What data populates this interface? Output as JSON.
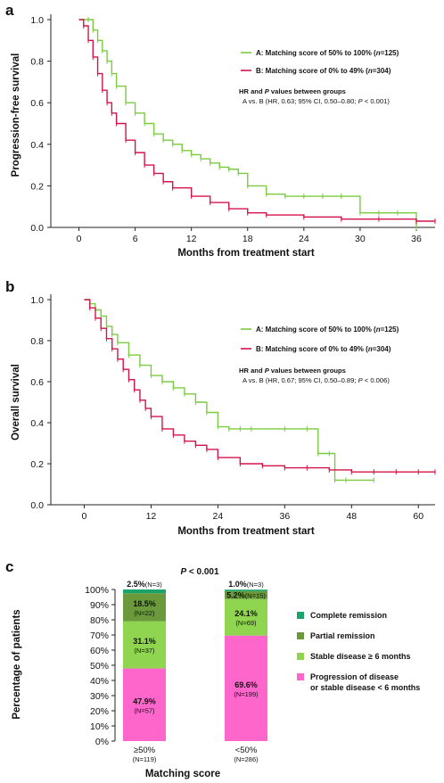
{
  "colors": {
    "green": "#7acc3f",
    "red": "#d3144a",
    "complete": "#1aa36b",
    "partial": "#6a9a3c",
    "stable": "#8fd54f",
    "progression": "#ff66cc"
  },
  "chart_data": [
    {
      "panel": "a",
      "type": "line",
      "ylabel": "Progression-free survival",
      "xlabel": "Months from treatment start",
      "xlim": [
        -3,
        38
      ],
      "ylim": [
        0,
        1.0
      ],
      "xticks": [
        0,
        6,
        12,
        18,
        24,
        30,
        36
      ],
      "yticks": [
        "0.0",
        "0.2",
        "0.4",
        "0.6",
        "0.8",
        "1.0"
      ],
      "legend": [
        {
          "letter": "A",
          "text": ": Matching score of 50% to 100% (",
          "n": "n",
          "ntext": "=125)"
        },
        {
          "letter": "B",
          "text": ": Matching score of 0% to 49% (",
          "n": "n",
          "ntext": "=304)"
        }
      ],
      "annotation": {
        "line1_pre": "HR and ",
        "line1_it": "P",
        "line1_post": " values between groups",
        "line2": "A vs. B (HR, 0.63; 95% CI, 0.50–0.80; ",
        "line2_it": "P",
        "line2_post": " < 0.001)"
      },
      "series": [
        {
          "name": "A: Matching score of 50% to 100% (n=125)",
          "x": [
            0,
            1,
            1.5,
            2,
            2.5,
            3,
            3.5,
            4,
            5,
            6,
            7,
            8,
            9,
            10,
            11,
            12,
            13,
            14,
            15,
            16,
            17,
            18,
            20,
            22,
            24,
            26,
            28,
            30,
            32,
            34,
            36
          ],
          "y": [
            1.0,
            1.0,
            0.95,
            0.9,
            0.85,
            0.8,
            0.74,
            0.68,
            0.6,
            0.55,
            0.5,
            0.45,
            0.42,
            0.4,
            0.37,
            0.35,
            0.33,
            0.31,
            0.29,
            0.28,
            0.26,
            0.2,
            0.16,
            0.15,
            0.15,
            0.15,
            0.15,
            0.07,
            0.07,
            0.07,
            0.0
          ]
        },
        {
          "name": "B: Matching score of 0% to 49% (n=304)",
          "x": [
            0,
            0.5,
            1,
            1.5,
            2,
            2.5,
            3,
            3.5,
            4,
            5,
            6,
            7,
            8,
            9,
            10,
            12,
            14,
            16,
            18,
            20,
            24,
            28,
            32,
            36,
            38
          ],
          "y": [
            1.0,
            0.97,
            0.9,
            0.82,
            0.74,
            0.66,
            0.6,
            0.55,
            0.5,
            0.42,
            0.36,
            0.3,
            0.26,
            0.22,
            0.19,
            0.15,
            0.12,
            0.09,
            0.07,
            0.06,
            0.05,
            0.04,
            0.04,
            0.03,
            0.03
          ]
        }
      ]
    },
    {
      "panel": "b",
      "type": "line",
      "ylabel": "Overall survival",
      "xlabel": "Months from treatment start",
      "xlim": [
        -6,
        63
      ],
      "ylim": [
        0,
        1.0
      ],
      "xticks": [
        0,
        12,
        24,
        36,
        48,
        60
      ],
      "yticks": [
        "0.0",
        "0.2",
        "0.4",
        "0.6",
        "0.8",
        "1.0"
      ],
      "legend": [
        {
          "letter": "A",
          "text": ": Matching score of 50% to 100% (",
          "n": "n",
          "ntext": "=125)"
        },
        {
          "letter": "B",
          "text": ": Matching score of 0% to 49% (",
          "n": "n",
          "ntext": "=304)"
        }
      ],
      "annotation": {
        "line1_pre": "HR and ",
        "line1_it": "P",
        "line1_post": " values between groups",
        "line2": "A vs. B (HR, 0.67; 95% CI, 0.50–0.89; ",
        "line2_it": "P",
        "line2_post": " < 0.006)"
      },
      "series": [
        {
          "name": "A: Matching score of 50% to 100% (n=125)",
          "x": [
            0,
            1,
            2,
            3,
            4,
            5,
            6,
            8,
            10,
            12,
            14,
            16,
            18,
            20,
            22,
            24,
            26,
            28,
            30,
            36,
            40,
            42,
            44,
            45,
            47,
            52
          ],
          "y": [
            1.0,
            0.98,
            0.95,
            0.92,
            0.87,
            0.83,
            0.79,
            0.73,
            0.68,
            0.63,
            0.6,
            0.57,
            0.54,
            0.5,
            0.45,
            0.38,
            0.37,
            0.37,
            0.37,
            0.37,
            0.37,
            0.25,
            0.25,
            0.12,
            0.12,
            0.12
          ]
        },
        {
          "name": "B: Matching score of 0% to 49% (n=304)",
          "x": [
            0,
            1,
            2,
            3,
            4,
            5,
            6,
            7,
            8,
            9,
            10,
            11,
            12,
            14,
            16,
            18,
            20,
            22,
            24,
            28,
            32,
            36,
            40,
            44,
            48,
            52,
            56,
            60,
            63
          ],
          "y": [
            1.0,
            0.96,
            0.91,
            0.86,
            0.81,
            0.76,
            0.71,
            0.66,
            0.61,
            0.56,
            0.51,
            0.47,
            0.43,
            0.37,
            0.34,
            0.31,
            0.29,
            0.27,
            0.23,
            0.2,
            0.19,
            0.18,
            0.18,
            0.17,
            0.16,
            0.16,
            0.16,
            0.16,
            0.16
          ]
        }
      ]
    },
    {
      "panel": "c",
      "type": "bar",
      "stacked": true,
      "ylabel": "Percentage of patients",
      "xlabel": "Matching score",
      "ylim": [
        0,
        100
      ],
      "yticks": [
        "0%",
        "10%",
        "20%",
        "30%",
        "40%",
        "50%",
        "60%",
        "70%",
        "80%",
        "90%",
        "100%"
      ],
      "pvalue": {
        "it": "P",
        "text": " < 0.001"
      },
      "categories": [
        {
          "label": "≥50%",
          "n": "(N=119)"
        },
        {
          "label": "<50%",
          "n": "(N=286)"
        }
      ],
      "series": [
        {
          "name": "Progression of disease or stable disease < 6 months",
          "legend_line1": "Progression of disease",
          "legend_line2": "or stable disease < 6 months",
          "values": [
            47.9,
            69.6
          ],
          "labels": [
            "47.9%",
            "69.6%"
          ],
          "ns": [
            "(N=57)",
            "(N=199)"
          ]
        },
        {
          "name": "Stable disease ≥ 6 months",
          "values": [
            31.1,
            24.1
          ],
          "labels": [
            "31.1%",
            "24.1%"
          ],
          "ns": [
            "(N=37)",
            "(N=69)"
          ]
        },
        {
          "name": "Partial remission",
          "values": [
            18.5,
            5.2
          ],
          "labels": [
            "18.5%",
            "5.2%"
          ],
          "ns": [
            "(N=22)",
            "(N=15)"
          ]
        },
        {
          "name": "Complete remission",
          "values": [
            2.5,
            1.0
          ],
          "labels": [
            "2.5%",
            "1.0%"
          ],
          "ns": [
            "(N=3)",
            "(N=3)"
          ]
        }
      ]
    }
  ]
}
